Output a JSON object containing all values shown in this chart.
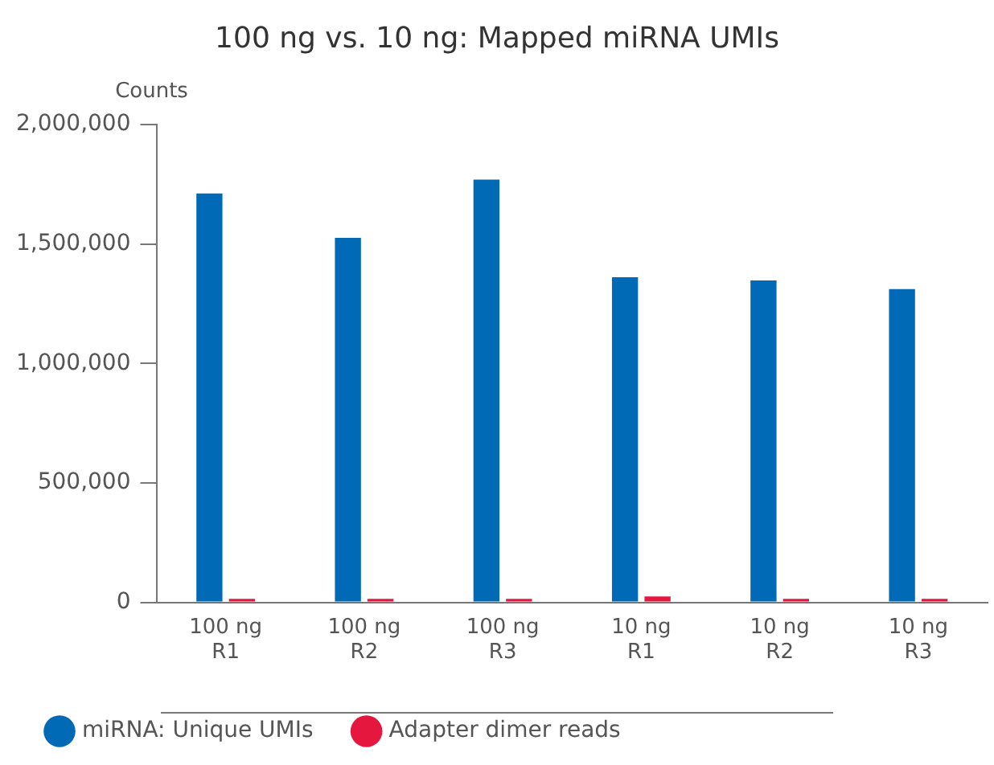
{
  "chart_data": {
    "type": "bar",
    "title": "100 ng vs. 10 ng: Mapped miRNA UMIs",
    "ylabel": "Counts",
    "categories": [
      "100 ng R1",
      "100 ng R2",
      "100 ng R3",
      "10 ng R1",
      "10 ng R2",
      "10 ng R3"
    ],
    "series": [
      {
        "name": "miRNA: Unique UMIs",
        "color": "#006ab7",
        "values": [
          1712000,
          1526000,
          1770000,
          1361000,
          1348000,
          1312000
        ]
      },
      {
        "name": "Adapter dimer reads",
        "color": "#e5173f",
        "values": [
          15000,
          15000,
          15000,
          25000,
          15000,
          15000
        ]
      }
    ],
    "ylim": [
      0,
      2000000
    ],
    "yticks": [
      0,
      {
        "value": 500000,
        "label": "500,000"
      },
      {
        "value": 1000000,
        "label": "1,000,000"
      },
      {
        "value": 1500000,
        "label": "1,500,000"
      },
      {
        "value": 2000000,
        "label": "2,000,000"
      }
    ],
    "grid": false,
    "legend": "bottom left"
  }
}
